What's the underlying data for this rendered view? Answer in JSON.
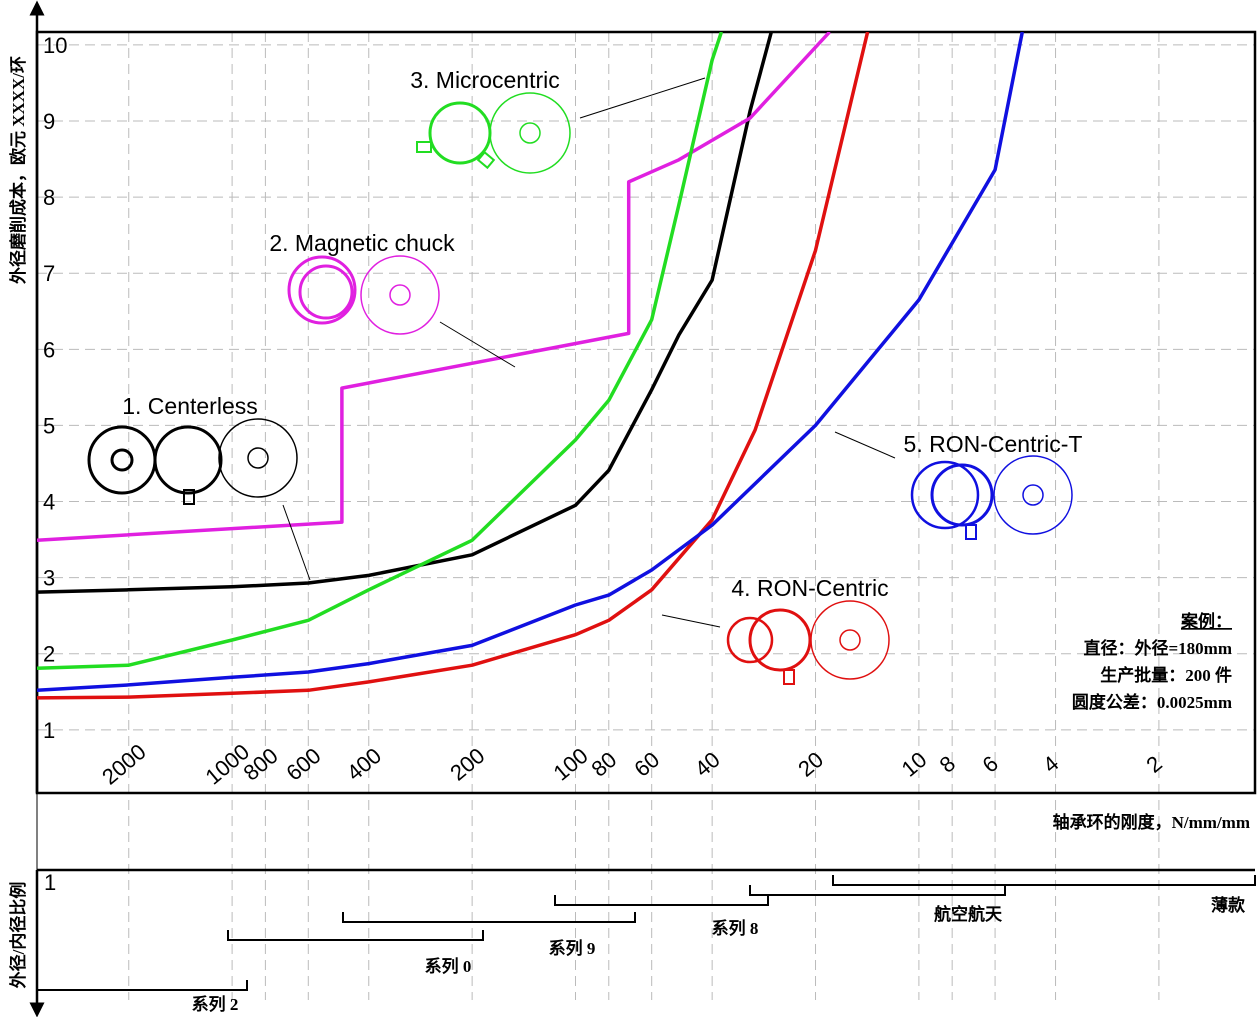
{
  "chart_data": {
    "type": "line",
    "y_label": "外径磨削成本，欧元 XXXX/环",
    "x_label": "轴承环的刚度，N/mm/mm",
    "x_log": true,
    "xlim": [
      3700,
      1.05
    ],
    "xticks": [
      2000,
      1000,
      800,
      600,
      400,
      200,
      100,
      80,
      60,
      40,
      20,
      10,
      8,
      6,
      4,
      2
    ],
    "ylim": [
      0.17,
      10.17
    ],
    "yticks": [
      1,
      2,
      3,
      4,
      5,
      6,
      7,
      8,
      9,
      10
    ],
    "grid": true,
    "series": [
      {
        "name": "1. Centerless",
        "color": "#000000",
        "x": [
          3700,
          2000,
          1000,
          600,
          400,
          200,
          100,
          80,
          60,
          50,
          40,
          31,
          26.9
        ],
        "values": [
          2.81,
          2.84,
          2.88,
          2.93,
          3.03,
          3.3,
          3.95,
          4.41,
          5.47,
          6.19,
          6.91,
          9.14,
          10.17
        ]
      },
      {
        "name": "2. Magnetic chuck",
        "color": "#e020e0",
        "x": [
          3700,
          479,
          479,
          70,
          70,
          50,
          31,
          18.2
        ],
        "values": [
          3.49,
          3.73,
          5.49,
          6.21,
          8.2,
          8.49,
          9.04,
          10.17
        ]
      },
      {
        "name": "3. Microcentric",
        "color": "#22dd22",
        "x": [
          3700,
          2000,
          1000,
          600,
          400,
          200,
          100,
          80,
          60,
          50,
          40,
          37.6
        ],
        "values": [
          1.81,
          1.85,
          2.18,
          2.44,
          2.84,
          3.49,
          4.81,
          5.33,
          6.39,
          7.9,
          9.8,
          10.17
        ]
      },
      {
        "name": "4. RON-Centric",
        "color": "#e01010",
        "x": [
          3700,
          2000,
          1000,
          600,
          400,
          200,
          100,
          80,
          60,
          40,
          30,
          20,
          14.1
        ],
        "values": [
          1.42,
          1.43,
          1.48,
          1.52,
          1.63,
          1.85,
          2.25,
          2.44,
          2.84,
          3.76,
          4.94,
          7.3,
          10.17
        ]
      },
      {
        "name": "5. RON-Centric-T",
        "color": "#1010e0",
        "x": [
          3700,
          2000,
          1000,
          600,
          400,
          200,
          100,
          80,
          60,
          40,
          20,
          10,
          6,
          5
        ],
        "values": [
          1.52,
          1.59,
          1.69,
          1.76,
          1.87,
          2.11,
          2.64,
          2.77,
          3.1,
          3.69,
          5.0,
          6.65,
          8.36,
          10.17
        ]
      }
    ],
    "example": {
      "title": "案例：",
      "lines": [
        "直径：外径=180mm",
        "生产批量：200 件",
        "圆度公差：0.0025mm"
      ]
    },
    "ratio_panel": {
      "y_label": "外径/内径比例",
      "y_tick": "1",
      "bands": [
        "系列 2",
        "系列 0",
        "系列 9",
        "系列 8",
        "航空航天",
        "薄款"
      ]
    }
  }
}
